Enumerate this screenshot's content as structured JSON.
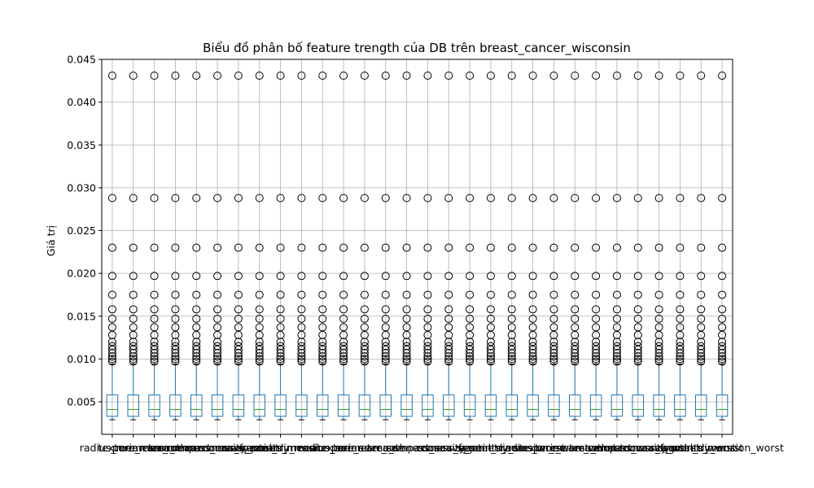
{
  "chart_data": {
    "type": "box",
    "title": "Biểu đồ phân bố feature trength của DB trên breast_cancer_wisconsin",
    "xlabel": "",
    "ylabel": "Giá trị",
    "ylim": [
      0.0012,
      0.045
    ],
    "yticks": [
      0.005,
      0.01,
      0.015,
      0.02,
      0.025,
      0.03,
      0.035,
      0.04,
      0.045
    ],
    "ytick_labels": [
      "0.005",
      "0.010",
      "0.015",
      "0.020",
      "0.025",
      "0.030",
      "0.035",
      "0.040",
      "0.045"
    ],
    "grid": true,
    "categories": [
      "radius_mean",
      "texture_mean",
      "perimeter_mean",
      "area_mean",
      "smoothness_mean",
      "compactness_mean",
      "concavity_mean",
      "concave_points_mean",
      "symmetry_mean",
      "fractal_dimension_mean",
      "radius_se",
      "texture_se",
      "perimeter_se",
      "area_se",
      "smoothness_se",
      "compactness_se",
      "concavity_se",
      "concave_points_se",
      "symmetry_se",
      "fractal_dimension_se",
      "radius_worst",
      "texture_worst",
      "perimeter_worst",
      "area_worst",
      "smoothness_worst",
      "compactness_worst",
      "concavity_worst",
      "concave_points_worst",
      "symmetry_worst",
      "fractal_dimension_worst"
    ],
    "box_stats": {
      "whisker_low": 0.0029,
      "q1": 0.0033,
      "median": 0.0041,
      "q3": 0.0058,
      "whisker_high": 0.0094
    },
    "outliers": [
      0.0097,
      0.01,
      0.0103,
      0.0107,
      0.0111,
      0.0115,
      0.012,
      0.0128,
      0.0137,
      0.0147,
      0.0158,
      0.0175,
      0.0197,
      0.023,
      0.0288,
      0.0431
    ],
    "colors": {
      "box": "#1f77b4",
      "median": "#2ca02c",
      "whisker": "#1f77b4",
      "cap": "#000000",
      "outlier": "#000000",
      "grid": "#b0b0b0"
    }
  }
}
